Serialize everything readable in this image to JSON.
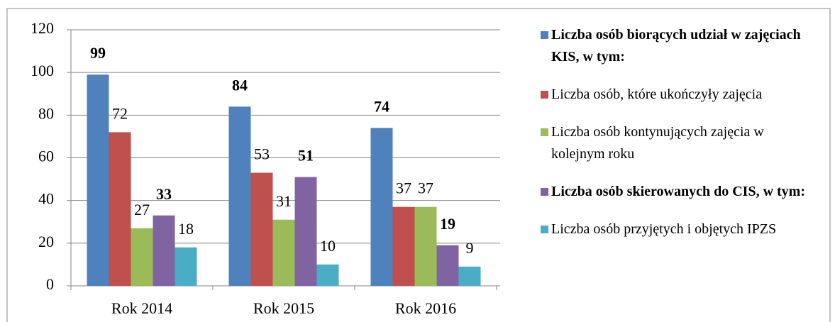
{
  "chart_data": {
    "type": "bar",
    "categories": [
      "Rok 2014",
      "Rok 2015",
      "Rok 2016"
    ],
    "series": [
      {
        "name": "Liczba osób biorących udział w zajęciach KIS, w tym:",
        "color": "#4f81bd",
        "bold": true,
        "values": [
          99,
          84,
          74
        ]
      },
      {
        "name": "Liczba osób, które ukończyły zajęcia",
        "color": "#c0504d",
        "bold": false,
        "values": [
          72,
          53,
          37
        ]
      },
      {
        "name": "Liczba osób kontynujących zajęcia w kolejnym roku",
        "color": "#9bbb59",
        "bold": false,
        "values": [
          27,
          31,
          37
        ]
      },
      {
        "name": "Liczba osób skierowanych do CIS, w tym:",
        "color": "#8064a2",
        "bold": true,
        "values": [
          33,
          51,
          19
        ]
      },
      {
        "name": "Liczba osób przyjętych i objętych IPZS",
        "color": "#4bacc6",
        "bold": false,
        "values": [
          18,
          10,
          9
        ]
      }
    ],
    "ylim": [
      0,
      120
    ],
    "yticks": [
      0,
      20,
      40,
      60,
      80,
      100,
      120
    ],
    "grid": true,
    "legend": "right"
  }
}
